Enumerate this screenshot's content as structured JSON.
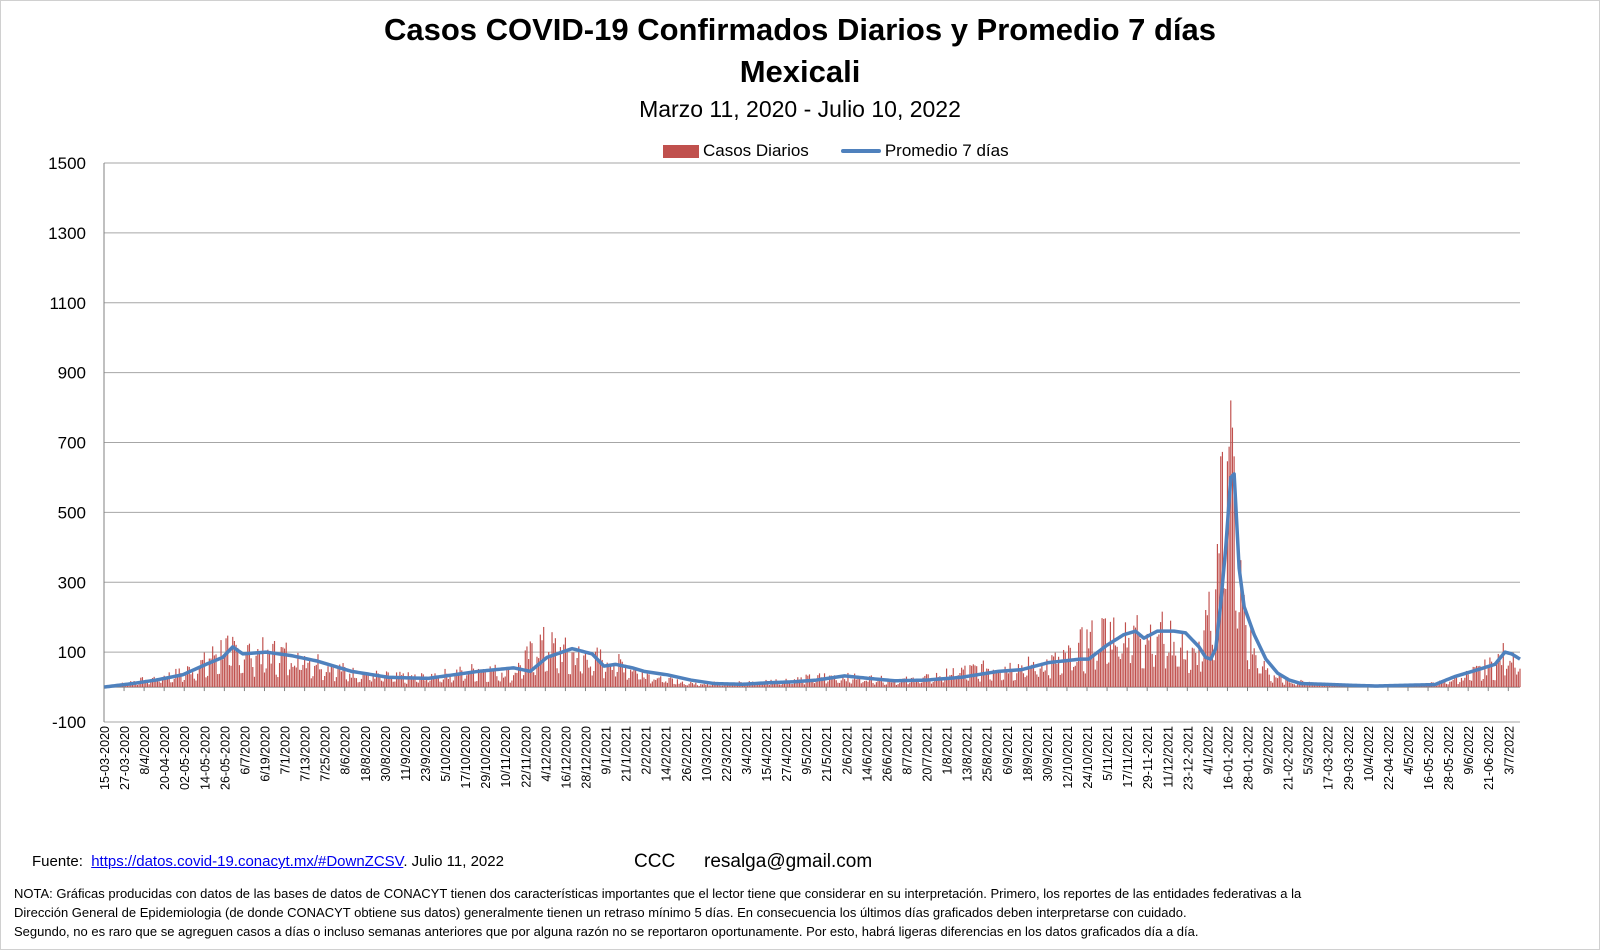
{
  "header": {
    "title": "Casos COVID-19 Confirmados Diarios y Promedio 7 días",
    "location": "Mexicali",
    "period": "Marzo 11, 2020 - Julio 10, 2022"
  },
  "legend": {
    "bars_label": "Casos Diarios",
    "line_label": "Promedio 7 días"
  },
  "footer": {
    "source_label": "Fuente:",
    "source_link": "https://datos.covid-19.conacyt.mx/#DownZCSV",
    "source_date": ". Julio 11, 2022",
    "ccc": "CCC",
    "email": "resalga@gmail.com",
    "note_1": "NOTA: Gráficas producidas con datos de las bases de datos de CONACYT tienen dos características importantes que el lector tiene que considerar en su interpretación.  Primero, los reportes de las entidades federativas  a la",
    "note_2": "Dirección General de Epidemiologia (de donde CONACYT obtiene sus datos) generalmente tienen un retraso mínimo 5 días. En consecuencia los últimos días graficados deben interpretarse  con cuidado.",
    "note_3": "Segundo, no es raro que se agreguen casos a días o incluso semanas anteriores que por alguna razón no se reportaron oportunamente.  Por esto, habrá ligeras diferencias en los datos  graficados día a día."
  },
  "colors": {
    "bars": "#c0504d",
    "line": "#4f81bd",
    "grid": "#a6a6a6"
  },
  "chart_data": {
    "type": "bar",
    "ylim": [
      -100,
      1500
    ],
    "yticks": [
      -100,
      100,
      300,
      500,
      700,
      900,
      1100,
      1300,
      1500
    ],
    "grid": true,
    "legend_position": "top",
    "x_start": "2020-03-15",
    "x_end": "2022-07-10",
    "xtick_labels": [
      "15-03-2020",
      "27-03-2020",
      "8/4/2020",
      "20-04-2020",
      "02-05-2020",
      "14-05-2020",
      "26-05-2020",
      "6/7/2020",
      "6/19/2020",
      "7/1/2020",
      "7/13/2020",
      "7/25/2020",
      "8/6/2020",
      "18/8/2020",
      "30/8/2020",
      "11/9/2020",
      "23/9/2020",
      "5/10/2020",
      "17/10/2020",
      "29/10/2020",
      "10/11/2020",
      "22/11/2020",
      "4/12/2020",
      "16/12/2020",
      "28/12/2020",
      "9/1/2021",
      "21/1/2021",
      "2/2/2021",
      "14/2/2021",
      "26/2/2021",
      "10/3/2021",
      "22/3/2021",
      "3/4/2021",
      "15/4/2021",
      "27/4/2021",
      "9/5/2021",
      "21/5/2021",
      "2/6/2021",
      "14/6/2021",
      "26/6/2021",
      "8/7/2021",
      "20/7/2021",
      "1/8/2021",
      "13/8/2021",
      "25/8/2021",
      "6/9/2021",
      "18/9/2021",
      "30/9/2021",
      "12/10/2021",
      "24/10/2021",
      "5/11/2021",
      "17/11/2021",
      "29-11-2021",
      "11/12/2021",
      "23-12-2021",
      "4/1/2022",
      "16-01-2022",
      "28-01-2022",
      "9/2/2022",
      "21-02-2022",
      "5/3/2022",
      "17-03-2022",
      "29-03-2022",
      "10/4/2022",
      "22-04-2022",
      "4/5/2022",
      "16-05-2022",
      "28-05-2022",
      "9/6/2022",
      "21-06-2022",
      "3/7/2022"
    ],
    "series": [
      {
        "name": "Casos Diarios",
        "kind": "bar",
        "x": [
          "2020-03-15",
          "2020-04-01",
          "2020-04-15",
          "2020-05-01",
          "2020-05-15",
          "2020-05-25",
          "2020-06-05",
          "2020-06-20",
          "2020-07-10",
          "2020-07-25",
          "2020-08-10",
          "2020-09-01",
          "2020-09-20",
          "2020-10-10",
          "2020-10-25",
          "2020-11-15",
          "2020-11-25",
          "2020-12-01",
          "2020-12-08",
          "2020-12-20",
          "2021-01-01",
          "2021-01-15",
          "2021-02-01",
          "2021-02-15",
          "2021-03-01",
          "2021-04-01",
          "2021-05-01",
          "2021-05-20",
          "2021-06-15",
          "2021-07-01",
          "2021-07-20",
          "2021-08-10",
          "2021-09-01",
          "2021-09-20",
          "2021-10-10",
          "2021-10-25",
          "2021-11-10",
          "2021-11-25",
          "2021-12-10",
          "2021-12-20",
          "2021-12-28",
          "2022-01-03",
          "2022-01-08",
          "2022-01-12",
          "2022-01-14",
          "2022-01-16",
          "2022-01-19",
          "2022-01-22",
          "2022-01-26",
          "2022-02-01",
          "2022-02-08",
          "2022-02-15",
          "2022-02-25",
          "2022-03-10",
          "2022-04-01",
          "2022-05-01",
          "2022-05-20",
          "2022-06-01",
          "2022-06-15",
          "2022-06-25",
          "2022-07-01",
          "2022-07-05",
          "2022-07-10"
        ],
        "values": [
          0,
          15,
          25,
          40,
          70,
          110,
          100,
          95,
          90,
          65,
          40,
          30,
          28,
          38,
          50,
          40,
          90,
          120,
          110,
          90,
          80,
          75,
          40,
          20,
          10,
          12,
          20,
          30,
          25,
          18,
          25,
          45,
          55,
          60,
          75,
          130,
          160,
          160,
          155,
          110,
          80,
          150,
          250,
          480,
          730,
          890,
          600,
          330,
          200,
          90,
          50,
          25,
          15,
          12,
          6,
          5,
          10,
          22,
          45,
          65,
          90,
          95,
          85
        ]
      },
      {
        "name": "Promedio 7 días",
        "kind": "line",
        "x": [
          "2020-03-15",
          "2020-04-01",
          "2020-04-15",
          "2020-05-01",
          "2020-05-15",
          "2020-05-25",
          "2020-05-31",
          "2020-06-06",
          "2020-06-20",
          "2020-07-05",
          "2020-07-20",
          "2020-08-10",
          "2020-09-01",
          "2020-09-15",
          "2020-09-25",
          "2020-10-10",
          "2020-10-25",
          "2020-11-15",
          "2020-11-25",
          "2020-12-05",
          "2020-12-20",
          "2021-01-01",
          "2021-01-08",
          "2021-01-15",
          "2021-01-25",
          "2021-02-01",
          "2021-02-15",
          "2021-03-01",
          "2021-03-15",
          "2021-04-01",
          "2021-04-15",
          "2021-05-01",
          "2021-05-15",
          "2021-06-01",
          "2021-06-15",
          "2021-07-01",
          "2021-07-20",
          "2021-08-10",
          "2021-09-01",
          "2021-09-15",
          "2021-10-01",
          "2021-10-20",
          "2021-10-25",
          "2021-11-05",
          "2021-11-15",
          "2021-11-22",
          "2021-11-27",
          "2021-12-05",
          "2021-12-15",
          "2021-12-22",
          "2021-12-30",
          "2022-01-03",
          "2022-01-06",
          "2022-01-09",
          "2022-01-12",
          "2022-01-15",
          "2022-01-18",
          "2022-01-20",
          "2022-01-23",
          "2022-01-26",
          "2022-02-01",
          "2022-02-08",
          "2022-02-15",
          "2022-02-22",
          "2022-03-01",
          "2022-03-15",
          "2022-04-01",
          "2022-04-15",
          "2022-05-01",
          "2022-05-20",
          "2022-06-01",
          "2022-06-15",
          "2022-06-25",
          "2022-07-01",
          "2022-07-05",
          "2022-07-10"
        ],
        "values": [
          0,
          10,
          20,
          35,
          65,
          85,
          115,
          95,
          100,
          90,
          75,
          45,
          28,
          26,
          25,
          35,
          45,
          55,
          45,
          85,
          110,
          95,
          60,
          65,
          55,
          45,
          35,
          20,
          10,
          8,
          12,
          15,
          20,
          32,
          25,
          18,
          20,
          28,
          45,
          50,
          70,
          80,
          80,
          120,
          150,
          160,
          140,
          160,
          160,
          155,
          115,
          85,
          80,
          110,
          240,
          400,
          600,
          610,
          340,
          230,
          150,
          80,
          40,
          20,
          10,
          8,
          5,
          3,
          5,
          7,
          30,
          50,
          65,
          100,
          95,
          80
        ]
      }
    ]
  }
}
